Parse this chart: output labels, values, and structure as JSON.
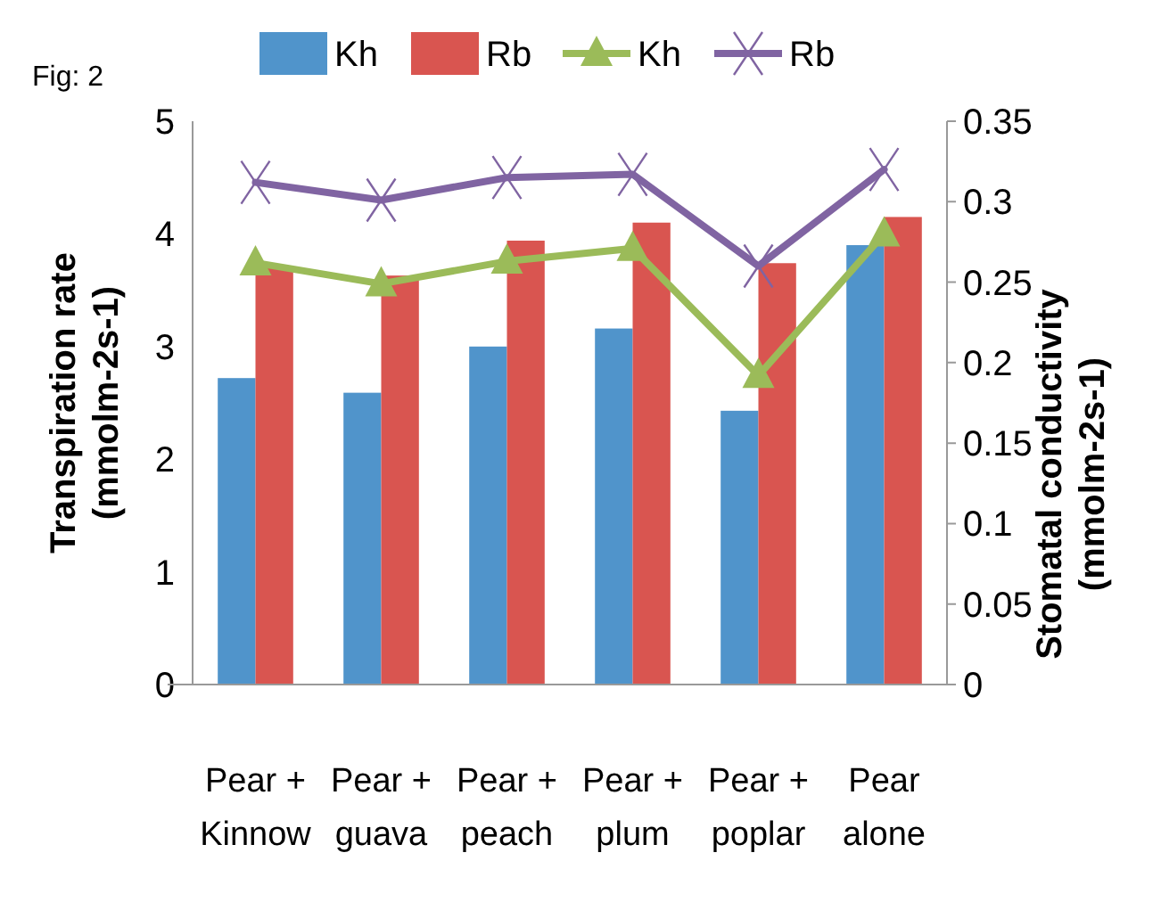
{
  "chart_data": {
    "type": "bar",
    "categories": [
      "Pear +\nKinnow",
      "Pear +\nguava",
      "Pear +\npeach",
      "Pear +\nplum",
      "Pear +\npoplar",
      "Pear\nalone"
    ],
    "ylabel": "Transpiration rate\n(mmolm-2s-1)",
    "y2label": "Stomatal conductivity\n(mmolm-2s-1)",
    "annotations": [
      "Fig: 2"
    ],
    "ylim": [
      0,
      5
    ],
    "yticks": [
      0,
      1,
      2,
      3,
      4,
      5
    ],
    "y2lim": [
      0,
      0.35
    ],
    "y2ticks": [
      {
        "value": 0,
        "label": "0"
      },
      {
        "value": 0.05,
        "label": "0.05"
      },
      {
        "value": 0.1,
        "label": "0.1"
      },
      {
        "value": 0.15,
        "label": "0.15"
      },
      {
        "value": 0.2,
        "label": "0.2"
      },
      {
        "value": 0.25,
        "label": "0.25"
      },
      {
        "value": 0.3,
        "label": "0.3"
      },
      {
        "value": 0.35,
        "label": "0.35"
      }
    ],
    "grid": false,
    "legend": "top",
    "series": [
      {
        "name": "Kh",
        "color": "#5094cb",
        "values": [
          2.72,
          2.59,
          3.0,
          3.16,
          2.43,
          3.9
        ]
      },
      {
        "name": "Rb",
        "color": "#d95550",
        "values": [
          3.7,
          3.63,
          3.94,
          4.1,
          3.74,
          4.15
        ]
      },
      {
        "name": "Kh",
        "type": "line",
        "axis": "y2",
        "marker": "triangle",
        "color": "#9bbb59",
        "values": [
          0.262,
          0.249,
          0.263,
          0.271,
          0.192,
          0.28
        ]
      },
      {
        "name": "Rb",
        "type": "line",
        "axis": "y2",
        "marker": "cross",
        "color": "#8064a2",
        "values": [
          0.312,
          0.301,
          0.315,
          0.317,
          0.26,
          0.32
        ]
      }
    ]
  }
}
